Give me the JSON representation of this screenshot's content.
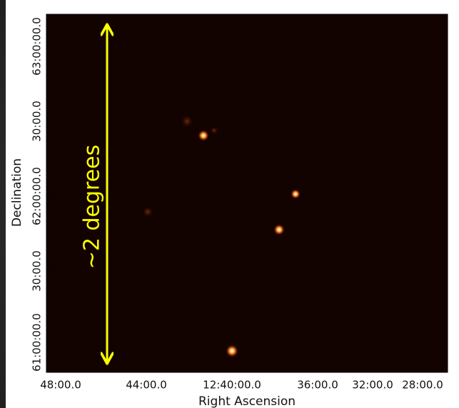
{
  "axes": {
    "x_label": "Right Ascension",
    "y_label": "Declination",
    "x_ticks": [
      "48:00.0",
      "44:00.0",
      "12:40:00.0",
      "36:00.0",
      "32:00.0",
      "28:00.0"
    ],
    "y_ticks": [
      "63:00:00.0",
      "30:00.0",
      "62:00:00.0",
      "30:00.0",
      "61:00:00.0"
    ]
  },
  "annotation": "~2 degrees"
}
